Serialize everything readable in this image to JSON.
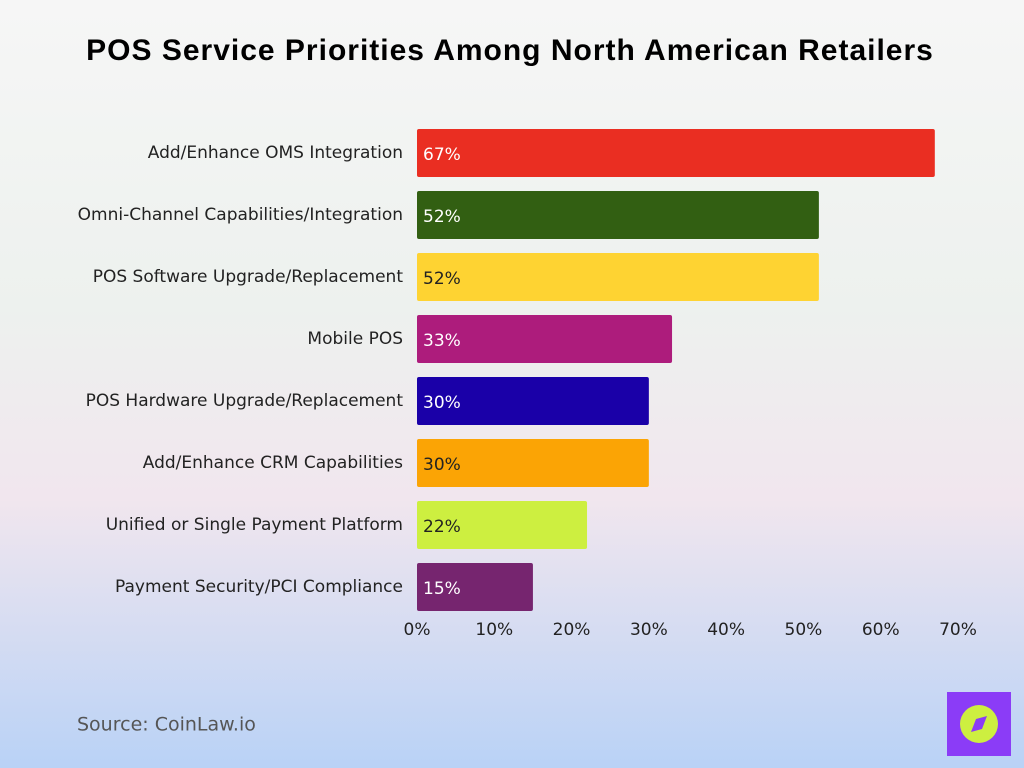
{
  "chart_data": {
    "type": "bar",
    "orientation": "horizontal",
    "title": "POS Service Priorities Among North American Retailers",
    "categories": [
      "Add/Enhance OMS Integration",
      "Omni-Channel Capabilities/Integration",
      "POS Software Upgrade/Replacement",
      "Mobile POS",
      "POS Hardware Upgrade/Replacement",
      "Add/Enhance CRM Capabilities",
      "Unified or Single Payment Platform",
      "Payment Security/PCI Compliance"
    ],
    "values": [
      67,
      52,
      52,
      33,
      30,
      30,
      22,
      15
    ],
    "value_labels": [
      "67%",
      "52%",
      "52%",
      "33%",
      "30%",
      "30%",
      "22%",
      "15%"
    ],
    "colors": [
      "#ea2e22",
      "#325f12",
      "#fed332",
      "#ad1c7c",
      "#1a00a8",
      "#fba405",
      "#cdef40",
      "#76256f"
    ],
    "xlim": [
      0,
      70
    ],
    "xticks": [
      {
        "value": 0,
        "label": "0%"
      },
      {
        "value": 10,
        "label": "10%"
      },
      {
        "value": 20,
        "label": "20%"
      },
      {
        "value": 30,
        "label": "30%"
      },
      {
        "value": 40,
        "label": "40%"
      },
      {
        "value": 50,
        "label": "50%"
      },
      {
        "value": 60,
        "label": "60%"
      },
      {
        "value": 70,
        "label": "70%"
      }
    ],
    "grid": false,
    "source": "Source: CoinLaw.io"
  }
}
